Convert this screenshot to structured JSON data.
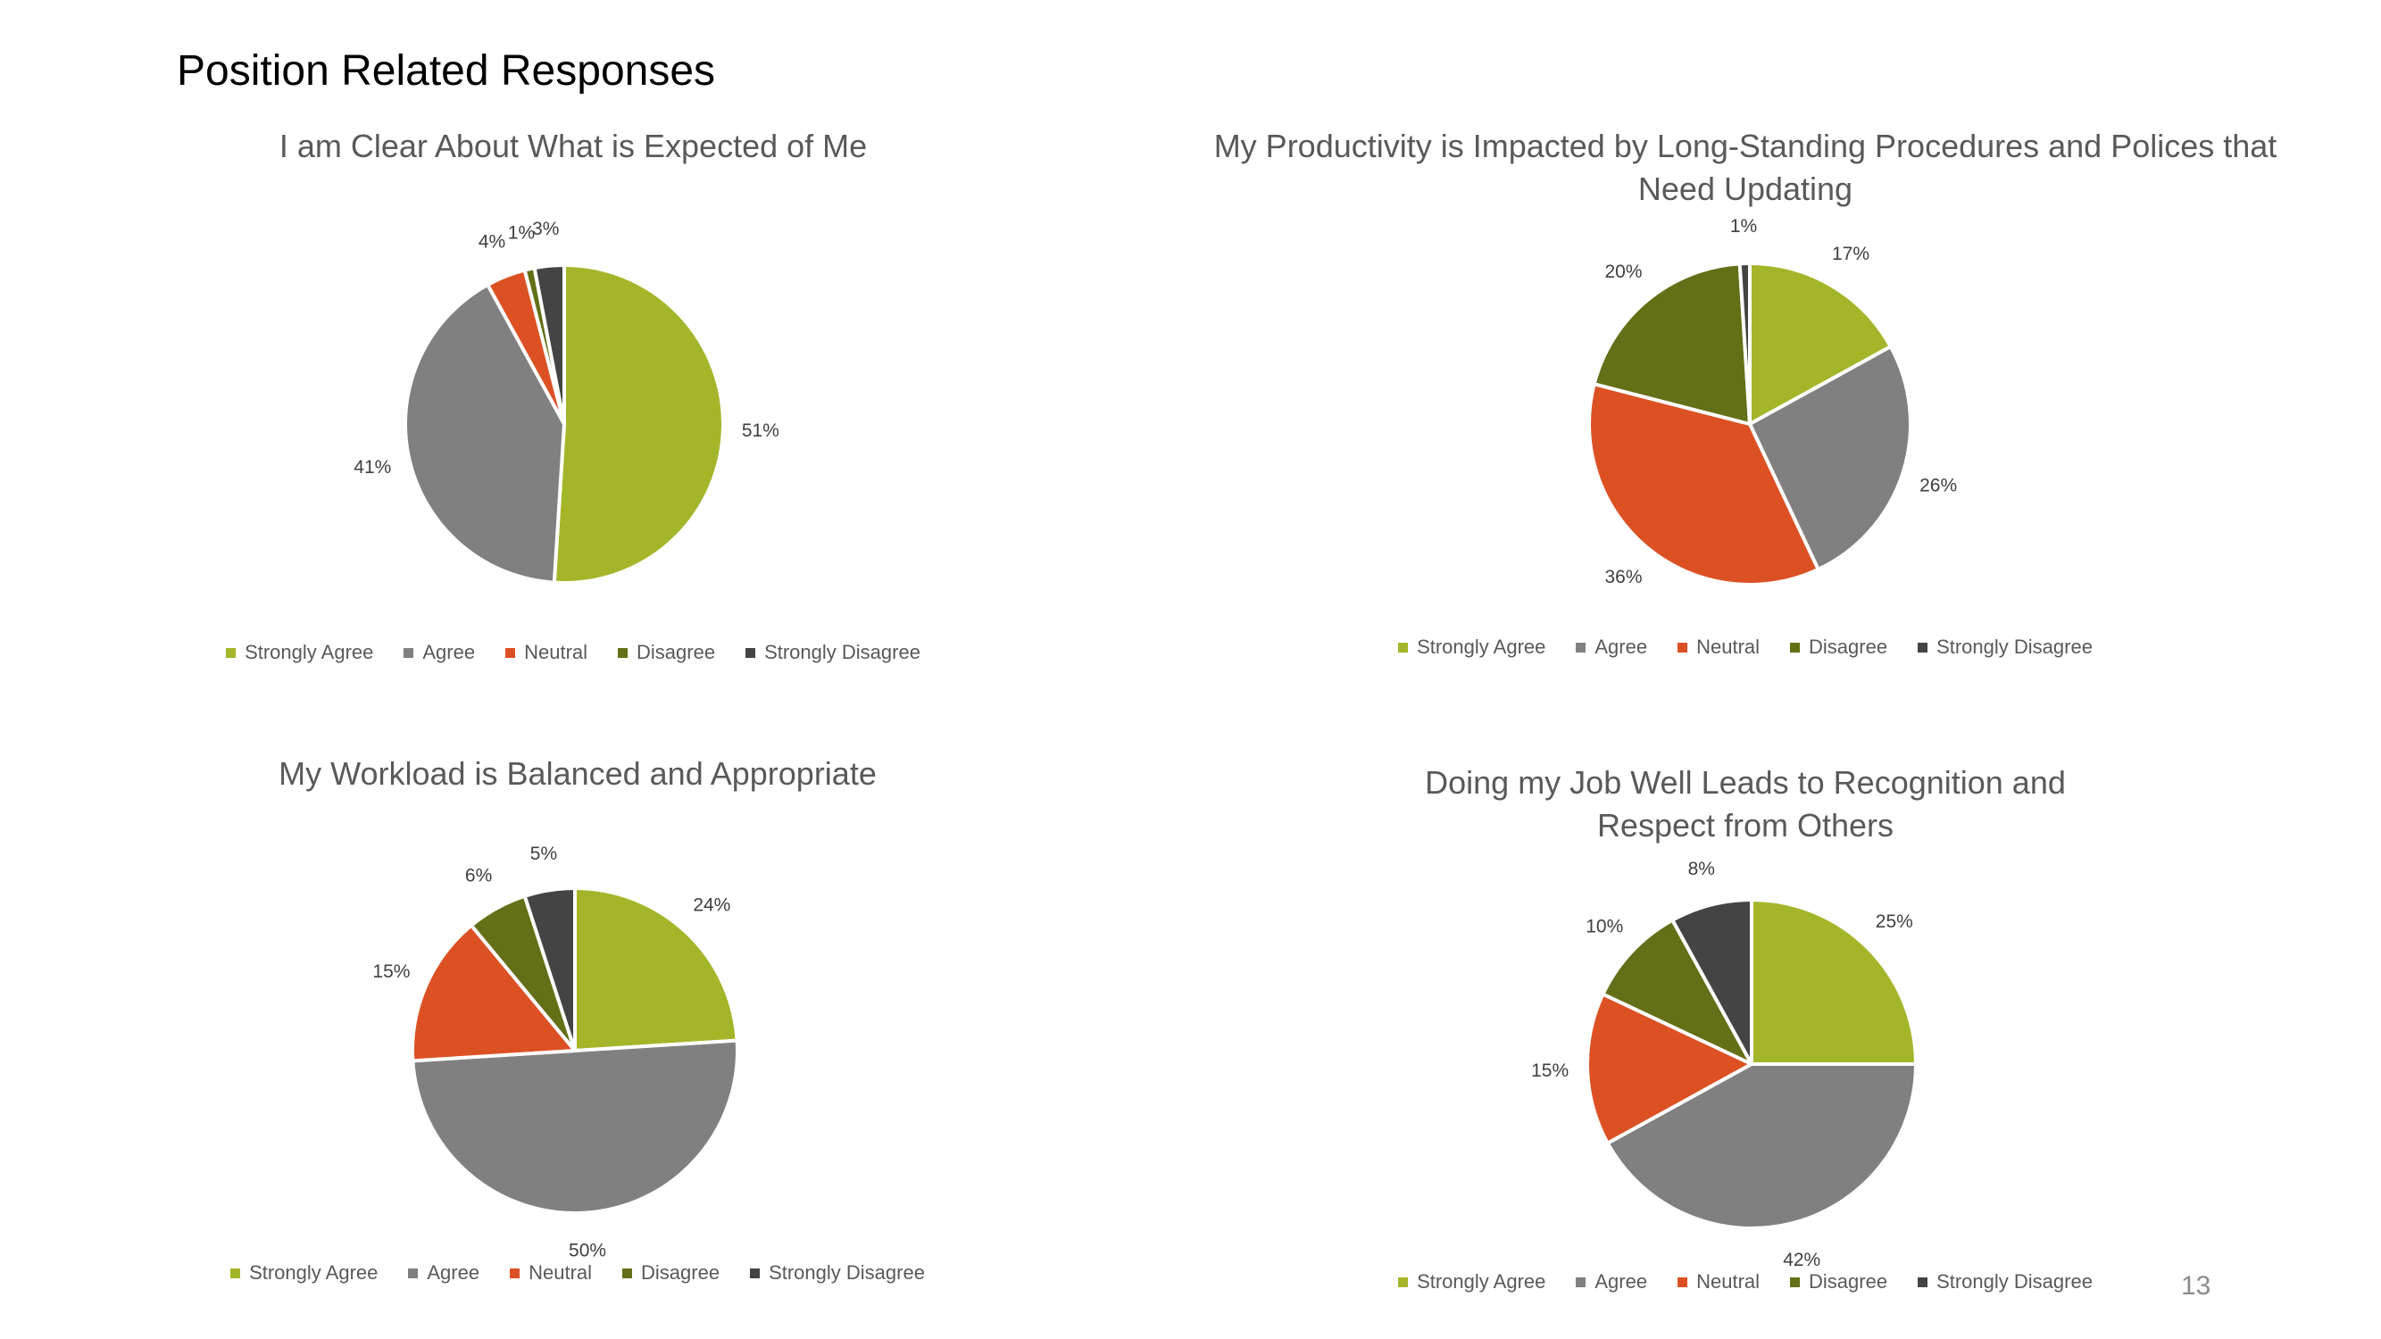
{
  "slide": {
    "title": "Position Related Responses",
    "page_number": "13"
  },
  "colors": {
    "Strongly Agree": "#a5b52a",
    "Agree": "#808080",
    "Neutral": "#dc5124",
    "Disagree": "#646f17",
    "Strongly Disagree": "#444444"
  },
  "chart_data": [
    {
      "type": "pie",
      "title": "I am Clear About What is Expected of Me",
      "categories": [
        "Strongly Agree",
        "Agree",
        "Neutral",
        "Disagree",
        "Strongly Disagree"
      ],
      "values": [
        51,
        41,
        4,
        1,
        3
      ],
      "labels": [
        "51%",
        "41%",
        "4%",
        "1%",
        "3%"
      ],
      "legend": "bottom"
    },
    {
      "type": "pie",
      "title": "My Productivity is Impacted by Long-Standing Procedures and Polices that Need Updating",
      "categories": [
        "Strongly Agree",
        "Agree",
        "Neutral",
        "Disagree",
        "Strongly Disagree"
      ],
      "values": [
        17,
        26,
        36,
        20,
        1
      ],
      "labels": [
        "17%",
        "26%",
        "36%",
        "20%",
        "1%"
      ],
      "legend": "bottom"
    },
    {
      "type": "pie",
      "title": "My Workload is Balanced and Appropriate",
      "categories": [
        "Strongly Agree",
        "Agree",
        "Neutral",
        "Disagree",
        "Strongly Disagree"
      ],
      "values": [
        24,
        50,
        15,
        6,
        5
      ],
      "labels": [
        "24%",
        "50%",
        "15%",
        "6%",
        "5%"
      ],
      "legend": "bottom"
    },
    {
      "type": "pie",
      "title": "Doing my Job Well Leads to Recognition and Respect from Others",
      "categories": [
        "Strongly Agree",
        "Agree",
        "Neutral",
        "Disagree",
        "Strongly Disagree"
      ],
      "values": [
        25,
        42,
        15,
        10,
        8
      ],
      "labels": [
        "25%",
        "42%",
        "15%",
        "10%",
        "8%"
      ],
      "legend": "bottom"
    }
  ]
}
